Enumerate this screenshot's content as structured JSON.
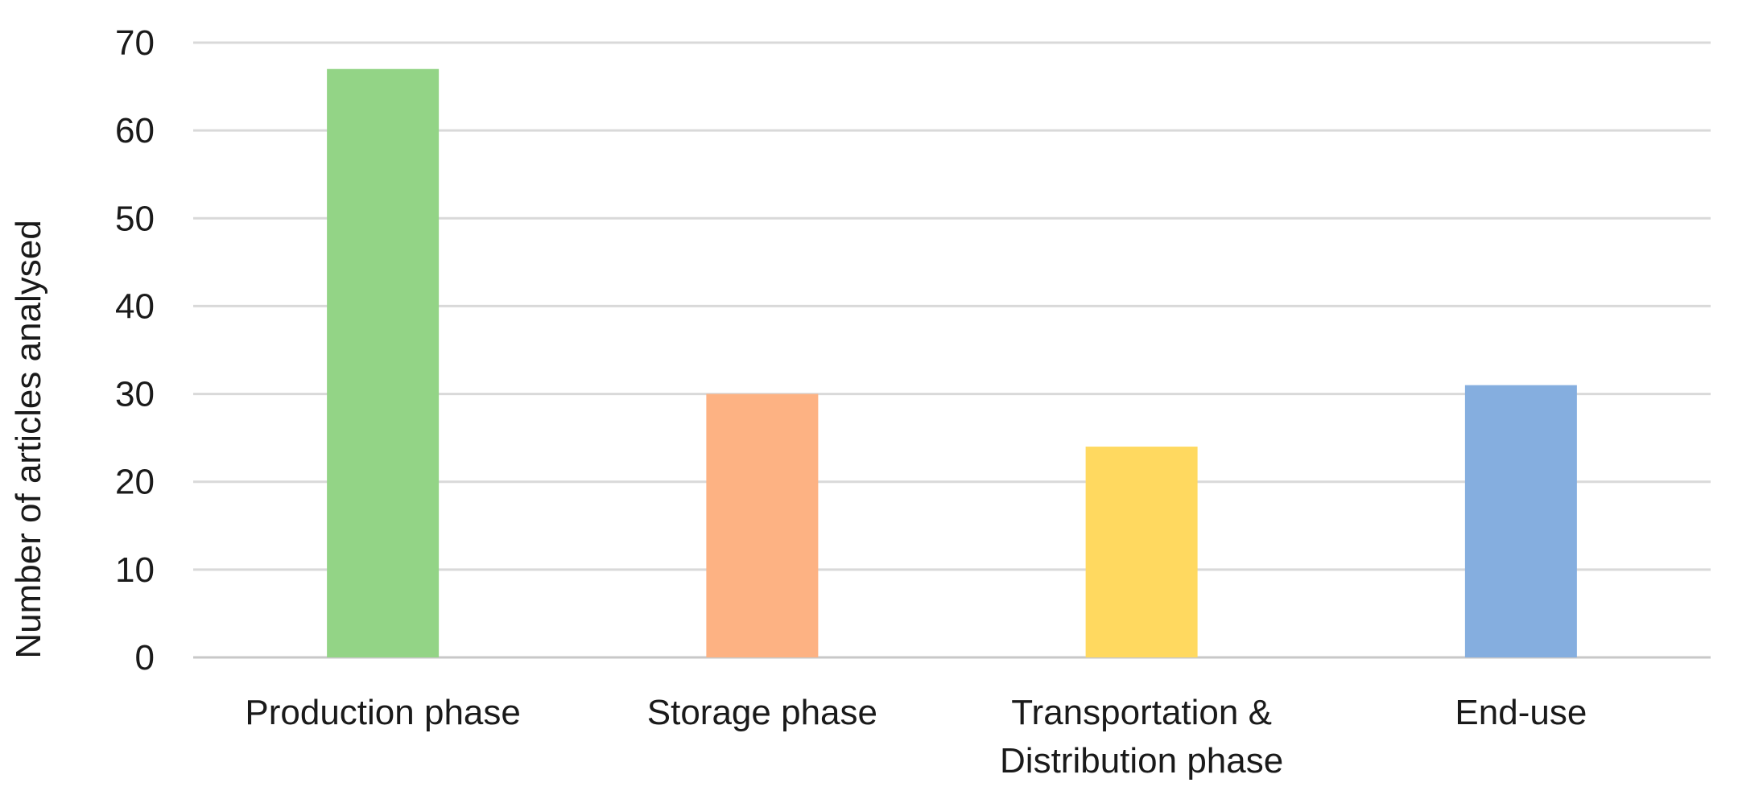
{
  "chart_data": {
    "type": "bar",
    "categories": [
      [
        "Production phase"
      ],
      [
        "Storage phase"
      ],
      [
        "Transportation &",
        "Distribution phase"
      ],
      [
        "End-use"
      ]
    ],
    "values": [
      67,
      30,
      24,
      31
    ],
    "colors": [
      "#93d486",
      "#fdb283",
      "#ffd960",
      "#85aedf"
    ],
    "title": "",
    "xlabel": "",
    "ylabel": "Number of articles analysed",
    "ylim": [
      0,
      70
    ],
    "yticks": [
      0,
      10,
      20,
      30,
      40,
      50,
      60,
      70
    ],
    "grid": true,
    "legend": "none"
  }
}
